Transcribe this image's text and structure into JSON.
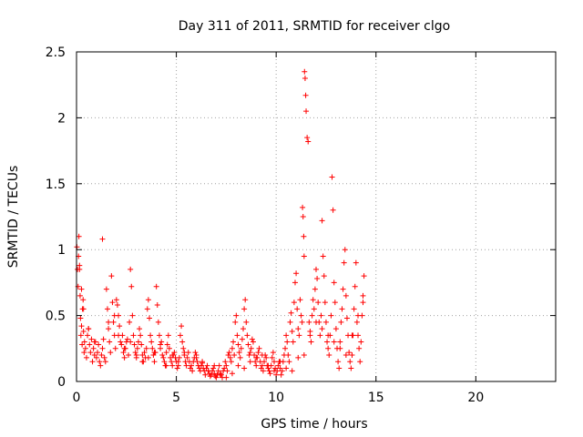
{
  "chart_data": {
    "type": "scatter",
    "title": "Day 311 of 2011, SRMTID for receiver clgo",
    "xlabel": "GPS time / hours",
    "ylabel": "SRMTID / TECUs",
    "xlim": [
      0,
      24
    ],
    "ylim": [
      0,
      2.5
    ],
    "xticks": [
      0,
      5,
      10,
      15,
      20
    ],
    "yticks": [
      0,
      0.5,
      1,
      1.5,
      2,
      2.5
    ],
    "xtick_labels": [
      "0",
      "5",
      "10",
      "15",
      "20"
    ],
    "ytick_labels": [
      "0",
      "0.5",
      "1",
      "1.5",
      "2",
      "2.5"
    ],
    "grid": true,
    "marker": "+",
    "color": "#ff0000",
    "series": [
      {
        "name": "SRMTID",
        "x": [
          0.02,
          0.05,
          0.08,
          0.1,
          0.12,
          0.15,
          0.18,
          0.2,
          0.22,
          0.25,
          0.28,
          0.3,
          0.33,
          0.35,
          0.38,
          0.4,
          0.45,
          0.5,
          0.55,
          0.6,
          0.65,
          0.7,
          0.75,
          0.8,
          0.85,
          0.9,
          0.95,
          1.0,
          1.05,
          1.1,
          1.15,
          1.2,
          1.25,
          1.3,
          1.35,
          1.4,
          1.45,
          1.5,
          1.55,
          1.6,
          1.65,
          1.7,
          1.75,
          1.8,
          1.85,
          1.9,
          1.95,
          2.0,
          2.05,
          2.1,
          2.15,
          2.2,
          2.25,
          2.3,
          2.35,
          2.4,
          2.45,
          2.5,
          2.55,
          2.6,
          2.65,
          2.7,
          2.75,
          2.8,
          2.85,
          2.9,
          2.95,
          3.0,
          3.05,
          3.1,
          3.15,
          3.2,
          3.25,
          3.3,
          3.35,
          3.4,
          3.45,
          3.5,
          3.55,
          3.6,
          3.65,
          3.7,
          3.75,
          3.8,
          3.85,
          3.9,
          3.95,
          4.0,
          4.05,
          4.1,
          4.15,
          4.2,
          4.25,
          4.3,
          4.35,
          4.4,
          4.45,
          4.5,
          4.55,
          4.6,
          4.65,
          4.7,
          4.75,
          4.8,
          4.85,
          4.9,
          4.95,
          5.0,
          5.05,
          5.1,
          5.15,
          5.2,
          5.25,
          5.3,
          5.35,
          5.4,
          5.45,
          5.5,
          5.55,
          5.6,
          5.65,
          5.7,
          5.75,
          5.8,
          5.85,
          5.9,
          5.95,
          6.0,
          6.05,
          6.1,
          6.15,
          6.2,
          6.25,
          6.3,
          6.35,
          6.4,
          6.45,
          6.5,
          6.55,
          6.6,
          6.65,
          6.7,
          6.75,
          6.8,
          6.85,
          6.9,
          6.95,
          7.0,
          7.05,
          7.1,
          7.15,
          7.2,
          7.25,
          7.3,
          7.35,
          7.4,
          7.45,
          7.5,
          7.55,
          7.6,
          7.65,
          7.7,
          7.75,
          7.8,
          7.85,
          7.9,
          7.95,
          8.0,
          8.05,
          8.1,
          8.15,
          8.2,
          8.25,
          8.3,
          8.35,
          8.4,
          8.45,
          8.5,
          8.55,
          8.6,
          8.65,
          8.7,
          8.75,
          8.8,
          8.85,
          8.9,
          8.95,
          9.0,
          9.05,
          9.1,
          9.15,
          9.2,
          9.25,
          9.3,
          9.35,
          9.4,
          9.45,
          9.5,
          9.55,
          9.6,
          9.65,
          9.7,
          9.75,
          9.8,
          9.85,
          9.9,
          9.95,
          10.0,
          10.05,
          10.1,
          10.15,
          10.2,
          10.25,
          10.3,
          10.35,
          10.4,
          10.45,
          10.5,
          10.55,
          10.6,
          10.65,
          10.7,
          10.75,
          10.8,
          10.85,
          10.9,
          10.95,
          11.0,
          11.05,
          11.1,
          11.15,
          11.2,
          11.25,
          11.3,
          11.32,
          11.35,
          11.38,
          11.4,
          11.42,
          11.45,
          11.48,
          11.5,
          11.55,
          11.6,
          11.65,
          11.7,
          11.75,
          11.8,
          11.85,
          11.9,
          11.95,
          12.0,
          12.05,
          12.1,
          12.15,
          12.2,
          12.25,
          12.3,
          12.35,
          12.4,
          12.45,
          12.5,
          12.55,
          12.6,
          12.65,
          12.7,
          12.75,
          12.8,
          12.85,
          12.9,
          12.95,
          13.0,
          13.05,
          13.1,
          13.15,
          13.2,
          13.25,
          13.3,
          13.35,
          13.4,
          13.45,
          13.5,
          13.55,
          13.6,
          13.65,
          13.7,
          13.75,
          13.8,
          13.85,
          13.9,
          13.95,
          14.0,
          14.05,
          14.1,
          14.15,
          14.2,
          14.25,
          14.3,
          14.35,
          14.4,
          0.15,
          0.25,
          0.35,
          0.6,
          0.9,
          1.3,
          1.6,
          1.9,
          2.1,
          2.4,
          2.7,
          3.0,
          3.3,
          3.6,
          3.9,
          4.2,
          4.5,
          4.8,
          5.1,
          5.4,
          5.7,
          6.0,
          6.3,
          6.6,
          6.9,
          7.2,
          7.5,
          7.8,
          8.1,
          8.4,
          8.7,
          9.0,
          9.3,
          9.6,
          9.9,
          10.2,
          10.5,
          10.8,
          11.1,
          11.4,
          11.7,
          12.0,
          12.3,
          12.6,
          12.9,
          13.2,
          13.5,
          13.8,
          14.1,
          14.35
        ],
        "y": [
          1.02,
          0.85,
          0.72,
          0.95,
          1.1,
          0.88,
          0.65,
          0.48,
          0.35,
          0.42,
          0.28,
          0.55,
          0.62,
          0.38,
          0.22,
          0.3,
          0.25,
          0.18,
          0.35,
          0.4,
          0.28,
          0.22,
          0.32,
          0.15,
          0.25,
          0.2,
          0.3,
          0.18,
          0.22,
          0.28,
          0.15,
          0.12,
          0.2,
          0.25,
          0.32,
          0.18,
          0.15,
          0.7,
          0.55,
          0.4,
          0.3,
          0.22,
          0.8,
          0.6,
          0.45,
          0.35,
          0.25,
          0.62,
          0.58,
          0.5,
          0.42,
          0.3,
          0.28,
          0.35,
          0.22,
          0.18,
          0.25,
          0.3,
          0.32,
          0.2,
          0.45,
          0.85,
          0.72,
          0.5,
          0.35,
          0.28,
          0.22,
          0.18,
          0.25,
          0.3,
          0.4,
          0.35,
          0.28,
          0.2,
          0.15,
          0.22,
          0.18,
          0.25,
          0.55,
          0.62,
          0.48,
          0.35,
          0.3,
          0.25,
          0.2,
          0.15,
          0.22,
          0.72,
          0.58,
          0.45,
          0.35,
          0.28,
          0.3,
          0.2,
          0.18,
          0.15,
          0.12,
          0.22,
          0.28,
          0.35,
          0.25,
          0.18,
          0.15,
          0.12,
          0.2,
          0.22,
          0.18,
          0.15,
          0.1,
          0.12,
          0.18,
          0.35,
          0.42,
          0.3,
          0.25,
          0.2,
          0.15,
          0.12,
          0.18,
          0.22,
          0.15,
          0.1,
          0.12,
          0.08,
          0.15,
          0.18,
          0.22,
          0.2,
          0.15,
          0.12,
          0.1,
          0.08,
          0.12,
          0.15,
          0.1,
          0.08,
          0.05,
          0.1,
          0.12,
          0.08,
          0.06,
          0.04,
          0.05,
          0.08,
          0.1,
          0.06,
          0.04,
          0.03,
          0.05,
          0.08,
          0.12,
          0.06,
          0.05,
          0.03,
          0.08,
          0.1,
          0.15,
          0.12,
          0.08,
          0.2,
          0.22,
          0.18,
          0.15,
          0.25,
          0.3,
          0.2,
          0.45,
          0.5,
          0.35,
          0.28,
          0.22,
          0.18,
          0.25,
          0.32,
          0.4,
          0.55,
          0.62,
          0.45,
          0.35,
          0.28,
          0.2,
          0.15,
          0.25,
          0.32,
          0.3,
          0.2,
          0.15,
          0.12,
          0.18,
          0.22,
          0.25,
          0.15,
          0.1,
          0.12,
          0.08,
          0.15,
          0.2,
          0.18,
          0.12,
          0.1,
          0.08,
          0.06,
          0.12,
          0.18,
          0.22,
          0.15,
          0.1,
          0.05,
          0.08,
          0.12,
          0.15,
          0.1,
          0.05,
          0.08,
          0.15,
          0.2,
          0.25,
          0.35,
          0.3,
          0.2,
          0.15,
          0.45,
          0.52,
          0.38,
          0.3,
          0.6,
          0.75,
          0.82,
          0.55,
          0.4,
          0.35,
          0.62,
          0.5,
          0.45,
          1.32,
          1.25,
          1.1,
          0.95,
          2.35,
          2.3,
          2.17,
          2.05,
          1.85,
          1.82,
          0.45,
          0.38,
          0.3,
          0.5,
          0.62,
          0.55,
          0.7,
          0.85,
          0.78,
          0.6,
          0.45,
          0.35,
          0.5,
          1.22,
          0.95,
          0.8,
          0.6,
          0.45,
          0.3,
          0.25,
          0.2,
          0.35,
          0.5,
          1.55,
          1.3,
          0.75,
          0.6,
          0.4,
          0.25,
          0.15,
          0.1,
          0.3,
          0.45,
          0.55,
          0.7,
          0.9,
          1.0,
          0.65,
          0.48,
          0.35,
          0.22,
          0.15,
          0.1,
          0.2,
          0.35,
          0.55,
          0.72,
          0.9,
          0.45,
          0.35,
          0.25,
          0.15,
          0.3,
          0.5,
          0.65,
          0.8,
          0.85,
          0.7,
          0.55,
          0.4,
          0.3,
          1.08,
          0.45,
          0.5,
          0.35,
          0.25,
          0.3,
          0.2,
          0.15,
          0.18,
          0.22,
          0.25,
          0.12,
          0.2,
          0.15,
          0.22,
          0.1,
          0.18,
          0.14,
          0.08,
          0.12,
          0.05,
          0.03,
          0.06,
          0.12,
          0.1,
          0.22,
          0.18,
          0.2,
          0.12,
          0.08,
          0.15,
          0.1,
          0.08,
          0.18,
          0.2,
          0.35,
          0.45,
          0.4,
          0.35,
          0.3,
          0.25,
          0.2,
          0.35,
          0.5,
          0.6
        ]
      }
    ]
  }
}
